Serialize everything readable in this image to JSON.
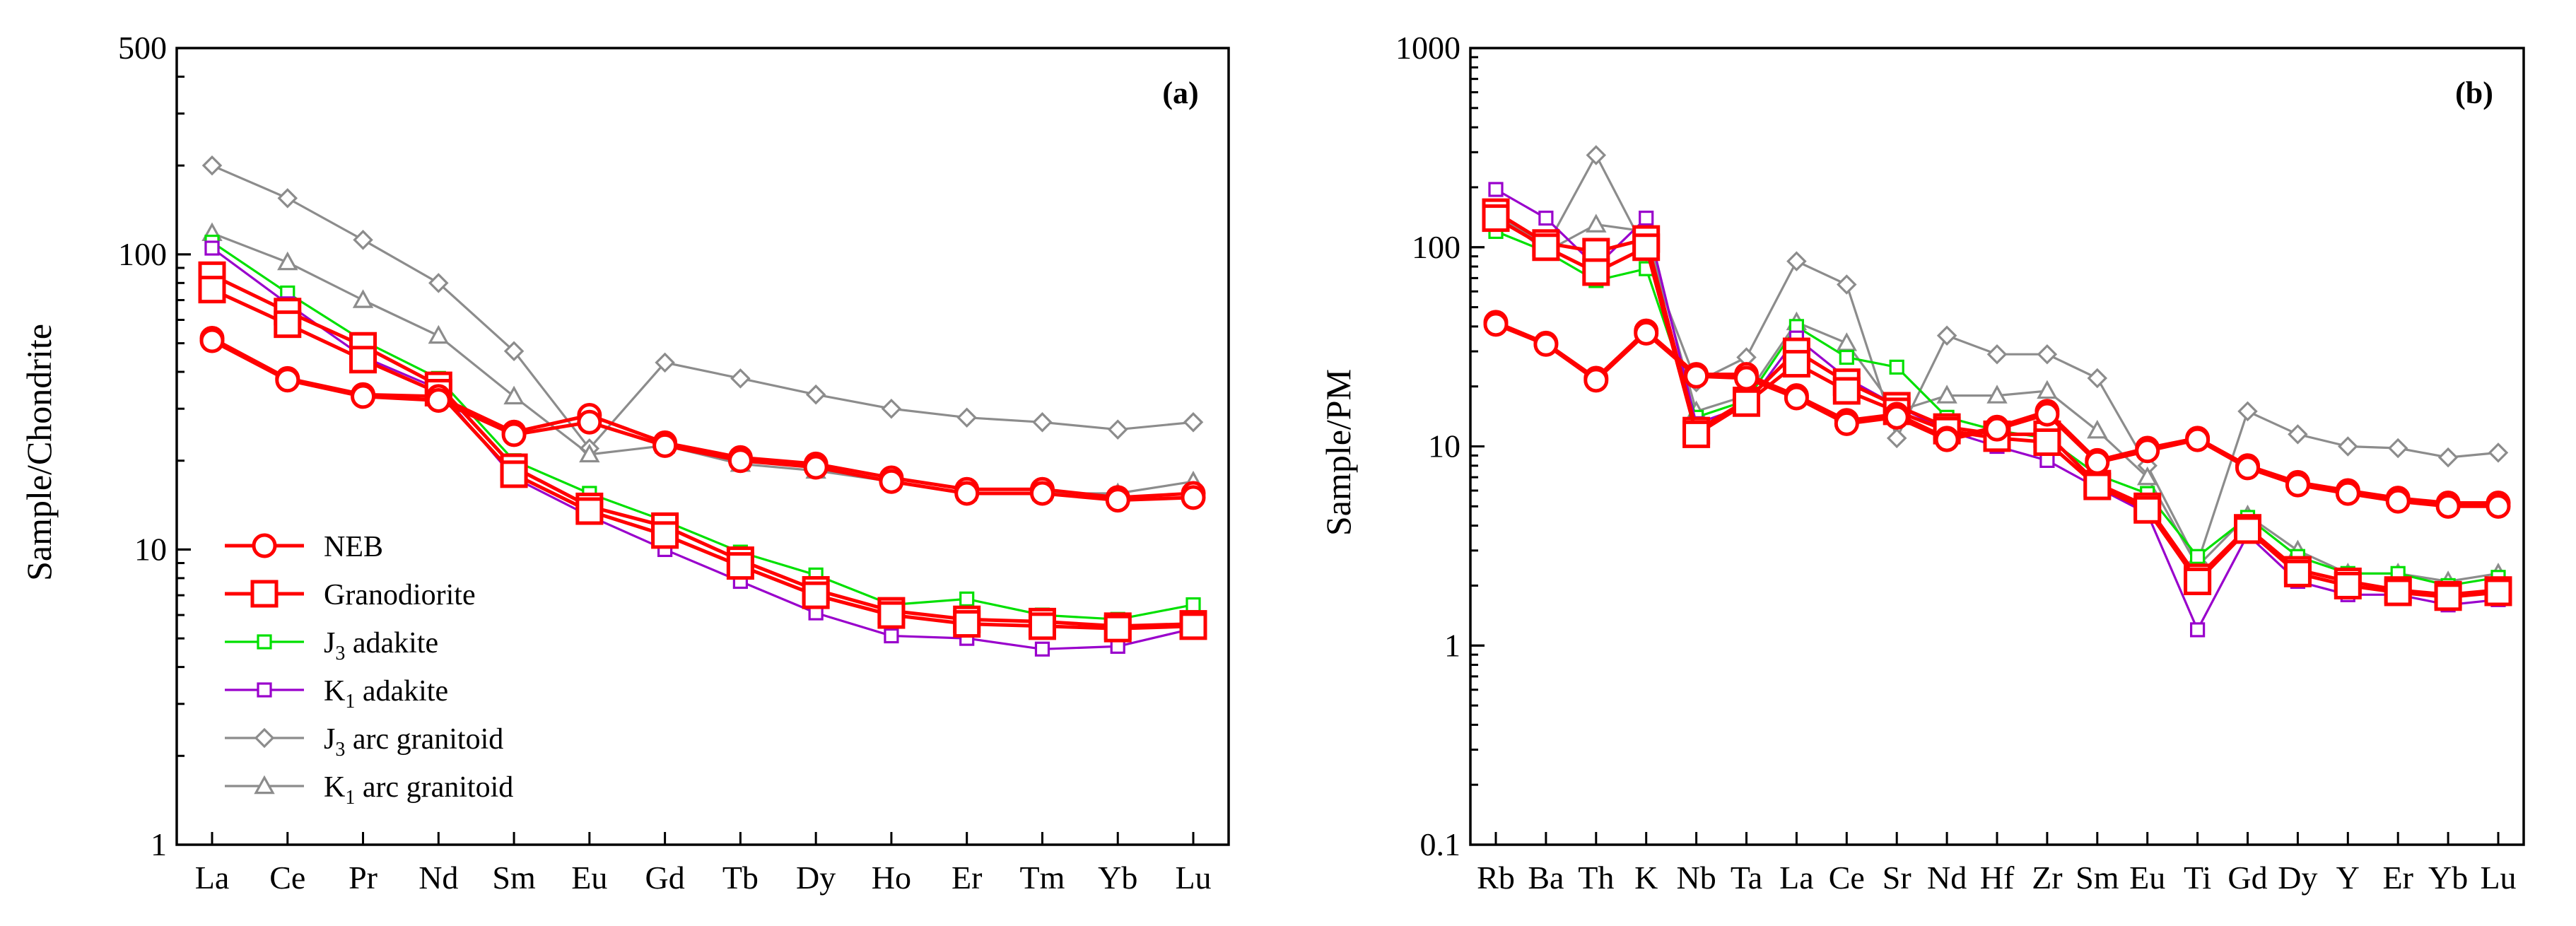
{
  "colors": {
    "NEB": "#ff0000",
    "Granodiorite": "#ff0000",
    "J3 adakite": "#00e000",
    "K1 adakite": "#9900cc",
    "J3 arc granitoid": "#8c8c8c",
    "K1 arc granitoid": "#8c8c8c"
  },
  "legend": [
    {
      "key": "NEB",
      "text": "NEB",
      "sub": "",
      "rest": "",
      "marker": "circle",
      "size": "large"
    },
    {
      "key": "Granodiorite",
      "text": "Granodiorite",
      "sub": "",
      "rest": "",
      "marker": "square",
      "size": "large"
    },
    {
      "key": "J3 adakite",
      "text": "J",
      "sub": "3",
      "rest": " adakite",
      "marker": "square",
      "size": "small"
    },
    {
      "key": "K1 adakite",
      "text": "K",
      "sub": "1",
      "rest": " adakite",
      "marker": "square",
      "size": "small"
    },
    {
      "key": "J3 arc granitoid",
      "text": "J",
      "sub": "3",
      "rest": " arc granitoid",
      "marker": "diamond",
      "size": "small"
    },
    {
      "key": "K1 arc granitoid",
      "text": "K",
      "sub": "1",
      "rest": " arc granitoid",
      "marker": "triangle",
      "size": "small"
    }
  ],
  "chart_data": [
    {
      "type": "line",
      "panel_label": "(a)",
      "ylabel": "Sample/Chondrite",
      "xlabel": "",
      "yscale": "log",
      "ylim": [
        1,
        500
      ],
      "yticks": [
        1,
        10,
        100,
        500
      ],
      "ytick_labels": [
        "1",
        "10",
        "100",
        "500"
      ],
      "categories": [
        "La",
        "Ce",
        "Pr",
        "Nd",
        "Sm",
        "Eu",
        "Gd",
        "Tb",
        "Dy",
        "Ho",
        "Er",
        "Tm",
        "Yb",
        "Lu"
      ],
      "series": [
        {
          "name": "J3 arc granitoid",
          "marker": "diamond",
          "values": [
            200,
            155,
            112,
            80,
            47,
            22,
            43,
            38,
            33.5,
            30,
            28,
            27,
            25.5,
            27
          ]
        },
        {
          "name": "K1 arc granitoid",
          "marker": "triangle",
          "values": [
            118,
            94,
            70,
            53,
            33,
            21,
            22.5,
            19.5,
            18.5,
            17,
            15.5,
            15.5,
            15.5,
            17
          ]
        },
        {
          "name": "J3 adakite",
          "marker": "square",
          "values": [
            110,
            74,
            51,
            38,
            20,
            15.5,
            12.5,
            9.8,
            8.2,
            6.5,
            6.8,
            6.0,
            5.8,
            6.5
          ]
        },
        {
          "name": "K1 adakite",
          "marker": "square",
          "values": [
            105,
            68,
            45,
            35,
            17.5,
            13,
            10,
            7.8,
            6.1,
            5.1,
            5.0,
            4.6,
            4.7,
            5.4
          ]
        },
        {
          "name": "Granodiorite",
          "marker": "square",
          "values": [
            85,
            64,
            49,
            36,
            19,
            14,
            12,
            9.2,
            7.3,
            6.2,
            5.8,
            5.7,
            5.5,
            5.6
          ]
        },
        {
          "name": "Granodiorite",
          "marker": "square",
          "values": [
            76,
            58,
            44,
            34,
            18,
            13.5,
            11.2,
            8.8,
            7.0,
            6.0,
            5.6,
            5.5,
            5.4,
            5.5
          ]
        },
        {
          "name": "NEB",
          "marker": "circle",
          "values": [
            52,
            38,
            33.5,
            33,
            25,
            28.5,
            23,
            20.5,
            19.5,
            17.5,
            16,
            16,
            15,
            15.5
          ]
        },
        {
          "name": "NEB",
          "marker": "circle",
          "values": [
            51,
            37.5,
            33,
            32,
            24.5,
            27,
            22.5,
            20,
            19,
            17,
            15.5,
            15.5,
            14.7,
            15
          ]
        }
      ]
    },
    {
      "type": "line",
      "panel_label": "(b)",
      "ylabel": "Sample/PM",
      "xlabel": "",
      "yscale": "log",
      "ylim": [
        0.1,
        1000
      ],
      "yticks": [
        0.1,
        1,
        10,
        100,
        1000
      ],
      "ytick_labels": [
        "0.1",
        "1",
        "10",
        "100",
        "1000"
      ],
      "categories": [
        "Rb",
        "Ba",
        "Th",
        "K",
        "Nb",
        "Ta",
        "La",
        "Ce",
        "Sr",
        "Nd",
        "Hf",
        "Zr",
        "Sm",
        "Eu",
        "Ti",
        "Gd",
        "Dy",
        "Y",
        "Er",
        "Yb",
        "Lu"
      ],
      "series": [
        {
          "name": "J3 arc granitoid",
          "marker": "diamond",
          "values": [
            150,
            100,
            290,
            95,
            21,
            28,
            85,
            65,
            11,
            36,
            29,
            29,
            22,
            8.0,
            2.6,
            15,
            11.5,
            10,
            9.8,
            8.8,
            9.3
          ]
        },
        {
          "name": "K1 arc granitoid",
          "marker": "triangle",
          "values": [
            150,
            95,
            130,
            120,
            15,
            18,
            42,
            33,
            15,
            18,
            18,
            19,
            12,
            7.0,
            2.5,
            4.5,
            3.0,
            2.3,
            2.3,
            2.1,
            2.3
          ]
        },
        {
          "name": "J3 adakite",
          "marker": "square",
          "values": [
            120,
            95,
            68,
            78,
            14,
            17,
            40,
            28,
            25,
            14,
            12,
            11,
            7.2,
            5.8,
            2.8,
            4.4,
            2.8,
            2.3,
            2.3,
            2.0,
            2.2
          ]
        },
        {
          "name": "K1 adakite",
          "marker": "square",
          "values": [
            195,
            140,
            80,
            140,
            13,
            16,
            35,
            22,
            16,
            12,
            10,
            8.5,
            6.2,
            4.6,
            1.2,
            3.6,
            2.1,
            1.8,
            1.8,
            1.6,
            1.7
          ]
        },
        {
          "name": "Granodiorite",
          "marker": "square",
          "values": [
            150,
            105,
            95,
            110,
            12,
            17,
            30,
            21,
            16,
            12.5,
            11.5,
            11.5,
            6.5,
            5.0,
            2.2,
            3.9,
            2.4,
            2.1,
            1.9,
            1.8,
            1.9
          ]
        },
        {
          "name": "Granodiorite",
          "marker": "square",
          "values": [
            140,
            100,
            75,
            100,
            11.5,
            16.5,
            26,
            19,
            15,
            12,
            11,
            10.5,
            6.3,
            4.8,
            2.1,
            3.8,
            2.3,
            2.0,
            1.85,
            1.75,
            1.85
          ]
        },
        {
          "name": "NEB",
          "marker": "circle",
          "values": [
            42,
            33,
            22,
            38,
            23,
            23,
            18,
            13.5,
            14.5,
            11,
            12.5,
            15,
            8.5,
            9.8,
            11,
            8,
            6.6,
            6,
            5.5,
            5.2,
            5.2
          ]
        },
        {
          "name": "NEB",
          "marker": "circle",
          "values": [
            41,
            32.5,
            21.5,
            37,
            22.5,
            22,
            17.5,
            13,
            14,
            10.8,
            12.2,
            14.5,
            8.3,
            9.5,
            10.8,
            7.8,
            6.4,
            5.8,
            5.3,
            5.0,
            5.0
          ]
        }
      ]
    }
  ]
}
